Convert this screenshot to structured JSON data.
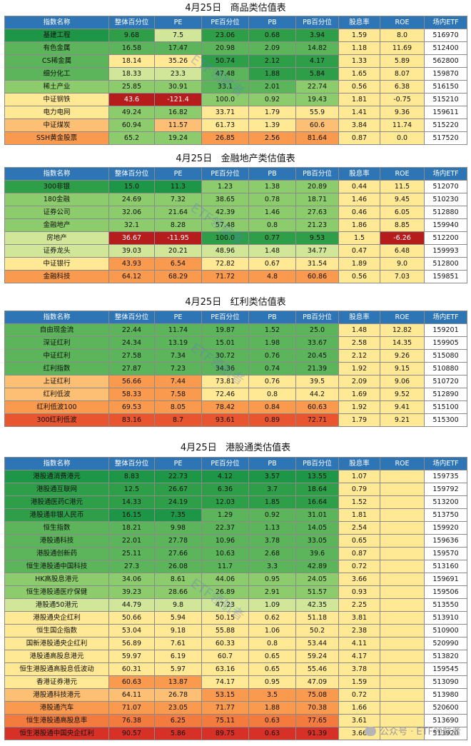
{
  "headers": [
    "指数名称",
    "整体百分位",
    "PE",
    "PE百分位",
    "PB",
    "PB百分位",
    "股息率",
    "ROE",
    "场内ETF"
  ],
  "sections": [
    {
      "title": "4月25日   商品类估值表",
      "rows": [
        [
          "基建工程",
          "9.68",
          "7.5",
          "23.06",
          "0.68",
          "3.94",
          "1.59",
          "8.0",
          "516970"
        ],
        [
          "有色金属",
          "16.58",
          "17.47",
          "20.98",
          "2.09",
          "14.82",
          "1.18",
          "11.69",
          "512400"
        ],
        [
          "CS稀金属",
          "18.14",
          "35.26",
          "50.74",
          "2.12",
          "4.17",
          "1.33",
          "5.89",
          "562800"
        ],
        [
          "细分化工",
          "18.33",
          "23.3",
          "47.48",
          "1.88",
          "5.84",
          "1.65",
          "8.07",
          "159870"
        ],
        [
          "稀土产业",
          "25.85",
          "30.91",
          "33.1",
          "2.01",
          "22.74",
          "0.56",
          "6.38",
          "516150"
        ],
        [
          "中证钢铁",
          "43.6",
          "-121.4",
          "100.0",
          "0.92",
          "19.43",
          "1.81",
          "-0.75",
          "515210"
        ],
        [
          "电力电网",
          "49.24",
          "16.82",
          "33.71",
          "1.79",
          "55.9",
          "1.41",
          "9.36",
          "159611"
        ],
        [
          "中证煤炭",
          "60.94",
          "11.57",
          "61.73",
          "1.39",
          "60.6",
          "3.84",
          "11.74",
          "515220"
        ],
        [
          "SSH黄金股票",
          "65.2",
          "19.24",
          "26.85",
          "2.56",
          "81.64",
          "0.87",
          "0.0",
          "517520"
        ]
      ],
      "colors": [
        [
          "#1e9648",
          "#2e9e49",
          "#d1e698",
          "#2e9e49",
          "#2e9e49",
          "#2e9e49",
          "#ffe994",
          "#ffe994",
          "#ffffff"
        ],
        [
          "#5cb55a",
          "#5cb55a",
          "#5cb55a",
          "#5cb55a",
          "#5cb55a",
          "#5cb55a",
          "#ffe994",
          "#ffe994",
          "#ffffff"
        ],
        [
          "#5cb55a",
          "#ffe994",
          "#ffe994",
          "#2e9e49",
          "#2e9e49",
          "#2e9e49",
          "#ffe994",
          "#ffe994",
          "#ffffff"
        ],
        [
          "#5cb55a",
          "#d1e698",
          "#d1e698",
          "#5cb55a",
          "#2e9e49",
          "#2e9e49",
          "#ffe994",
          "#ffe994",
          "#ffffff"
        ],
        [
          "#8dcc6c",
          "#8dcc6c",
          "#8dcc6c",
          "#5cb55a",
          "#5cb55a",
          "#8dcc6c",
          "#ffe994",
          "#ffe994",
          "#ffffff"
        ],
        [
          "#ffe994",
          "#b71c1c",
          "#b71c1c",
          "#8dcc6c",
          "#8dcc6c",
          "#8dcc6c",
          "#ffe994",
          "#ffe994",
          "#ffffff"
        ],
        [
          "#ffe994",
          "#8dcc6c",
          "#8dcc6c",
          "#ffe994",
          "#ffe994",
          "#ffe994",
          "#ffe994",
          "#ffe994",
          "#ffffff"
        ],
        [
          "#fdbf73",
          "#8dcc6c",
          "#fdbf73",
          "#ffe994",
          "#ffe994",
          "#fdbf73",
          "#ffe994",
          "#ffe994",
          "#ffffff"
        ],
        [
          "#fa9a4f",
          "#8dcc6c",
          "#8dcc6c",
          "#fa9a4f",
          "#fa9a4f",
          "#fa9a4f",
          "#ffe994",
          "#ffe994",
          "#ffffff"
        ]
      ]
    },
    {
      "title": "4月25日   金融地产类估值表",
      "rows": [
        [
          "300非银",
          "15.0",
          "11.3",
          "1.23",
          "1.38",
          "20.89",
          "0.44",
          "11.5",
          "512070"
        ],
        [
          "180金融",
          "24.69",
          "7.32",
          "38.65",
          "0.78",
          "18.71",
          "1.46",
          "9.45",
          "510230"
        ],
        [
          "证券公司",
          "32.06",
          "21.64",
          "42.39",
          "1.46",
          "27.63",
          "0.46",
          "6.05",
          "512880"
        ],
        [
          "金融地产",
          "32.1",
          "8.28",
          "57.48",
          "0.8",
          "21.23",
          "1.86",
          "8.85",
          "159940"
        ],
        [
          "房地产",
          "36.67",
          "-11.95",
          "100.0",
          "0.77",
          "9.53",
          "1.5",
          "-6.26",
          "512200"
        ],
        [
          "证券龙头",
          "39.03",
          "20.21",
          "48.96",
          "1.48",
          "34.77",
          "0.47",
          "6.48",
          "159993"
        ],
        [
          "中证银行",
          "43.93",
          "6.54",
          "72.82",
          "0.67",
          "31.54",
          "1.89",
          "9.0",
          "512800"
        ],
        [
          "金融科技",
          "64.12",
          "68.29",
          "71.72",
          "4.8",
          "60.86",
          "0.56",
          "7.03",
          "159851"
        ]
      ],
      "colors": [
        [
          "#2e9e49",
          "#1e9648",
          "#1e9648",
          "#8dcc6c",
          "#8dcc6c",
          "#8dcc6c",
          "#ffe994",
          "#ffe994",
          "#ffffff"
        ],
        [
          "#8dcc6c",
          "#8dcc6c",
          "#8dcc6c",
          "#8dcc6c",
          "#8dcc6c",
          "#8dcc6c",
          "#ffe994",
          "#ffe994",
          "#ffffff"
        ],
        [
          "#8dcc6c",
          "#8dcc6c",
          "#8dcc6c",
          "#8dcc6c",
          "#8dcc6c",
          "#8dcc6c",
          "#ffe994",
          "#ffe994",
          "#ffffff"
        ],
        [
          "#8dcc6c",
          "#8dcc6c",
          "#8dcc6c",
          "#8dcc6c",
          "#8dcc6c",
          "#8dcc6c",
          "#ffe994",
          "#ffe994",
          "#ffffff"
        ],
        [
          "#d1e698",
          "#b71c1c",
          "#b71c1c",
          "#2e9e49",
          "#2e9e49",
          "#2e9e49",
          "#ffe994",
          "#b71c1c",
          "#ffffff"
        ],
        [
          "#d1e698",
          "#d1e698",
          "#d1e698",
          "#d1e698",
          "#d1e698",
          "#d1e698",
          "#ffe994",
          "#ffe994",
          "#ffffff"
        ],
        [
          "#ffe994",
          "#fa9a4f",
          "#fa9a4f",
          "#ffe994",
          "#ffe994",
          "#ffe994",
          "#ffe994",
          "#ffe994",
          "#ffffff"
        ],
        [
          "#fa9a4f",
          "#fa9a4f",
          "#fa9a4f",
          "#fa9a4f",
          "#fa9a4f",
          "#fa9a4f",
          "#ffe994",
          "#ffe994",
          "#ffffff"
        ]
      ]
    },
    {
      "title": "4月25日   红利类估值表",
      "rows": [
        [
          "自由现金流",
          "22.44",
          "11.74",
          "19.87",
          "1.52",
          "25.0",
          "1.48",
          "12.82",
          "159201"
        ],
        [
          "深证红利",
          "24.34",
          "13.19",
          "15.01",
          "1.98",
          "33.67",
          "2.58",
          "14.35",
          "159905"
        ],
        [
          "中证红利",
          "27.58",
          "7.34",
          "30.72",
          "0.76",
          "20.45",
          "2.12",
          "9.26",
          "515080"
        ],
        [
          "红利指数",
          "27.87",
          "7.23",
          "34.36",
          "0.74",
          "21.39",
          "1.92",
          "9.15",
          "510880"
        ],
        [
          "上证红利",
          "56.66",
          "7.44",
          "73.81",
          "0.76",
          "39.5",
          "2.09",
          "9.06",
          "510720"
        ],
        [
          "红利低波",
          "58.33",
          "7.58",
          "72.46",
          "0.8",
          "44.2",
          "1.69",
          "9.52",
          "512890"
        ],
        [
          "红利低波100",
          "69.53",
          "8.05",
          "78.42",
          "0.84",
          "60.63",
          "1.92",
          "9.41",
          "515100"
        ],
        [
          "300红利低波",
          "83.16",
          "8.7",
          "93.61",
          "0.89",
          "72.71",
          "1.79",
          "9.21",
          "515300"
        ]
      ],
      "colors": [
        [
          "#5cb55a",
          "#5cb55a",
          "#5cb55a",
          "#5cb55a",
          "#5cb55a",
          "#5cb55a",
          "#ffe994",
          "#ffe994",
          "#ffffff"
        ],
        [
          "#5cb55a",
          "#5cb55a",
          "#5cb55a",
          "#5cb55a",
          "#5cb55a",
          "#5cb55a",
          "#ffe994",
          "#ffe994",
          "#ffffff"
        ],
        [
          "#5cb55a",
          "#5cb55a",
          "#5cb55a",
          "#5cb55a",
          "#5cb55a",
          "#5cb55a",
          "#ffe994",
          "#ffe994",
          "#ffffff"
        ],
        [
          "#5cb55a",
          "#5cb55a",
          "#5cb55a",
          "#5cb55a",
          "#5cb55a",
          "#5cb55a",
          "#ffe994",
          "#ffe994",
          "#ffffff"
        ],
        [
          "#fdbf73",
          "#fa9a4f",
          "#fa9a4f",
          "#ffe994",
          "#ffe994",
          "#ffe994",
          "#ffe994",
          "#ffe994",
          "#ffffff"
        ],
        [
          "#fdbf73",
          "#fa9a4f",
          "#fa9a4f",
          "#ffe994",
          "#ffe994",
          "#ffe994",
          "#ffe994",
          "#ffe994",
          "#ffffff"
        ],
        [
          "#fa9a4f",
          "#fa9a4f",
          "#fa9a4f",
          "#fa9a4f",
          "#fa9a4f",
          "#fa9a4f",
          "#ffe994",
          "#ffe994",
          "#ffffff"
        ],
        [
          "#e8552e",
          "#e8552e",
          "#e8552e",
          "#e8552e",
          "#e8552e",
          "#e8552e",
          "#ffe994",
          "#ffe994",
          "#ffffff"
        ]
      ]
    },
    {
      "title": "4月25日   港股通类估值表",
      "rows": [
        [
          "港股通消费港元",
          "8.83",
          "22.73",
          "4.12",
          "3.57",
          "13.55",
          "1.07",
          "",
          "159735"
        ],
        [
          "港股通互联网",
          "12.5",
          "26.67",
          "6.36",
          "3.7",
          "18.64",
          "0.79",
          "",
          "159792"
        ],
        [
          "港股通医药C港元",
          "14.33",
          "24.19",
          "12.03",
          "1.85",
          "16.64",
          "1.52",
          "",
          "513200"
        ],
        [
          "港股通非银人民币",
          "16.15",
          "7.35",
          "1.29",
          "0.92",
          "31.01",
          "1.81",
          "",
          "513750"
        ],
        [
          "恒生指数",
          "18.21",
          "9.98",
          "22.37",
          "1.13",
          "14.05",
          "2.54",
          "",
          "159920"
        ],
        [
          "港股通科技",
          "22.01",
          "27.78",
          "10.96",
          "3.78",
          "33.05",
          "0.65",
          "",
          "159636"
        ],
        [
          "港股通创新药",
          "25.11",
          "27.66",
          "10.63",
          "2.68",
          "39.6",
          "0.87",
          "",
          "159570"
        ],
        [
          "恒生港股通中国科技",
          "27.3",
          "26.08",
          "11.7",
          "3.3",
          "42.89",
          "0.72",
          "",
          "513160"
        ],
        [
          "HK高股息港元",
          "34.06",
          "8.61",
          "44.06",
          "0.95",
          "24.05",
          "3.66",
          "",
          "159691"
        ],
        [
          "恒生港股通医疗保健",
          "39.23",
          "28.66",
          "26.89",
          "2.91",
          "51.57",
          "0.93",
          "",
          "159506"
        ],
        [
          "港股通50港元",
          "44.79",
          "9.8",
          "47.23",
          "1.09",
          "42.35",
          "2.25",
          "",
          "513550"
        ],
        [
          "港股通央企红利",
          "50.66",
          "5.94",
          "50.15",
          "0.62",
          "51.18",
          "3.81",
          "",
          "513910"
        ],
        [
          "恒生国企指数",
          "53.04",
          "9.18",
          "55.88",
          "1.06",
          "50.2",
          "2.38",
          "",
          "510900"
        ],
        [
          "国新港股通央企红利",
          "56.89",
          "7.61",
          "60.33",
          "0.8",
          "53.44",
          "4.11",
          "",
          "520990"
        ],
        [
          "港股通高股息港元",
          "59.97",
          "6.19",
          "60.7",
          "0.65",
          "59.24",
          "4.17",
          "",
          "513820"
        ],
        [
          "恒生港股通高股息低波动",
          "60.31",
          "5.97",
          "63.16",
          "0.65",
          "55.46",
          "3.78",
          "",
          "159545"
        ],
        [
          "香港证券港元",
          "60.63",
          "13.87",
          "74.17",
          "0.95",
          "47.09",
          "1.59",
          "",
          "513090"
        ],
        [
          "港股通科技港元",
          "64.11",
          "26.78",
          "53.15",
          "3.5",
          "75.08",
          "0.72",
          "",
          "513980"
        ],
        [
          "港股通汽车",
          "71.07",
          "23.05",
          "71.77",
          "1.88",
          "70.38",
          "1.66",
          "",
          "520600"
        ],
        [
          "恒生港股通高股息率",
          "76.38",
          "6.25",
          "75.11",
          "0.63",
          "77.65",
          "3.61",
          "",
          "513690"
        ],
        [
          "恒生港股通中国央企红利",
          "90.57",
          "5.86",
          "89.75",
          "0.63",
          "91.39",
          "3.66",
          "",
          "513920"
        ]
      ],
      "colors": [
        [
          "#1e9648",
          "#1e9648",
          "#1e9648",
          "#1e9648",
          "#1e9648",
          "#1e9648",
          "#ffe994",
          "#ffe994",
          "#ffffff"
        ],
        [
          "#2e9e49",
          "#2e9e49",
          "#2e9e49",
          "#2e9e49",
          "#2e9e49",
          "#2e9e49",
          "#ffe994",
          "#ffe994",
          "#ffffff"
        ],
        [
          "#2e9e49",
          "#2e9e49",
          "#2e9e49",
          "#2e9e49",
          "#2e9e49",
          "#2e9e49",
          "#ffe994",
          "#ffe994",
          "#ffffff"
        ],
        [
          "#2e9e49",
          "#1e9648",
          "#1e9648",
          "#5cb55a",
          "#5cb55a",
          "#5cb55a",
          "#ffe994",
          "#ffe994",
          "#ffffff"
        ],
        [
          "#5cb55a",
          "#5cb55a",
          "#5cb55a",
          "#5cb55a",
          "#5cb55a",
          "#5cb55a",
          "#ffe994",
          "#ffe994",
          "#ffffff"
        ],
        [
          "#5cb55a",
          "#5cb55a",
          "#5cb55a",
          "#5cb55a",
          "#5cb55a",
          "#5cb55a",
          "#ffe994",
          "#ffe994",
          "#ffffff"
        ],
        [
          "#5cb55a",
          "#5cb55a",
          "#5cb55a",
          "#5cb55a",
          "#5cb55a",
          "#5cb55a",
          "#ffe994",
          "#ffe994",
          "#ffffff"
        ],
        [
          "#5cb55a",
          "#5cb55a",
          "#5cb55a",
          "#5cb55a",
          "#5cb55a",
          "#5cb55a",
          "#ffe994",
          "#ffe994",
          "#ffffff"
        ],
        [
          "#8dcc6c",
          "#8dcc6c",
          "#8dcc6c",
          "#8dcc6c",
          "#8dcc6c",
          "#8dcc6c",
          "#ffe994",
          "#ffe994",
          "#ffffff"
        ],
        [
          "#8dcc6c",
          "#8dcc6c",
          "#8dcc6c",
          "#8dcc6c",
          "#8dcc6c",
          "#8dcc6c",
          "#ffe994",
          "#ffe994",
          "#ffffff"
        ],
        [
          "#d1e698",
          "#d1e698",
          "#d1e698",
          "#d1e698",
          "#d1e698",
          "#d1e698",
          "#ffe994",
          "#ffe994",
          "#ffffff"
        ],
        [
          "#ffe994",
          "#ffe994",
          "#ffe994",
          "#ffe994",
          "#ffe994",
          "#ffe994",
          "#ffe994",
          "#ffe994",
          "#ffffff"
        ],
        [
          "#ffe994",
          "#ffe994",
          "#ffe994",
          "#ffe994",
          "#ffe994",
          "#ffe994",
          "#ffe994",
          "#ffe994",
          "#ffffff"
        ],
        [
          "#ffe994",
          "#ffe994",
          "#ffe994",
          "#ffe994",
          "#ffe994",
          "#ffe994",
          "#ffe994",
          "#ffe994",
          "#ffffff"
        ],
        [
          "#ffe994",
          "#ffe994",
          "#ffe994",
          "#ffe994",
          "#ffe994",
          "#ffe994",
          "#ffe994",
          "#ffe994",
          "#ffffff"
        ],
        [
          "#ffe994",
          "#ffe994",
          "#ffe994",
          "#ffe994",
          "#ffe994",
          "#ffe994",
          "#ffe994",
          "#ffe994",
          "#ffffff"
        ],
        [
          "#ffe994",
          "#fa9a4f",
          "#fa9a4f",
          "#ffe994",
          "#ffe994",
          "#ffe994",
          "#ffe994",
          "#ffe994",
          "#ffffff"
        ],
        [
          "#fdbf73",
          "#fdbf73",
          "#fdbf73",
          "#fa9a4f",
          "#fa9a4f",
          "#fa9a4f",
          "#ffe994",
          "#ffe994",
          "#ffffff"
        ],
        [
          "#fa9a4f",
          "#fa9a4f",
          "#fa9a4f",
          "#fa9a4f",
          "#fa9a4f",
          "#fa9a4f",
          "#ffe994",
          "#ffe994",
          "#ffffff"
        ],
        [
          "#f47b3e",
          "#f47b3e",
          "#f47b3e",
          "#f47b3e",
          "#f47b3e",
          "#f47b3e",
          "#ffe994",
          "#ffe994",
          "#ffffff"
        ],
        [
          "#d73027",
          "#d73027",
          "#d73027",
          "#d73027",
          "#d73027",
          "#d73027",
          "#ffe994",
          "#ffe994",
          "#ffffff"
        ]
      ]
    }
  ],
  "watermark_text": "ETF领航者",
  "brand_text": "公众号 · ETF领航者"
}
